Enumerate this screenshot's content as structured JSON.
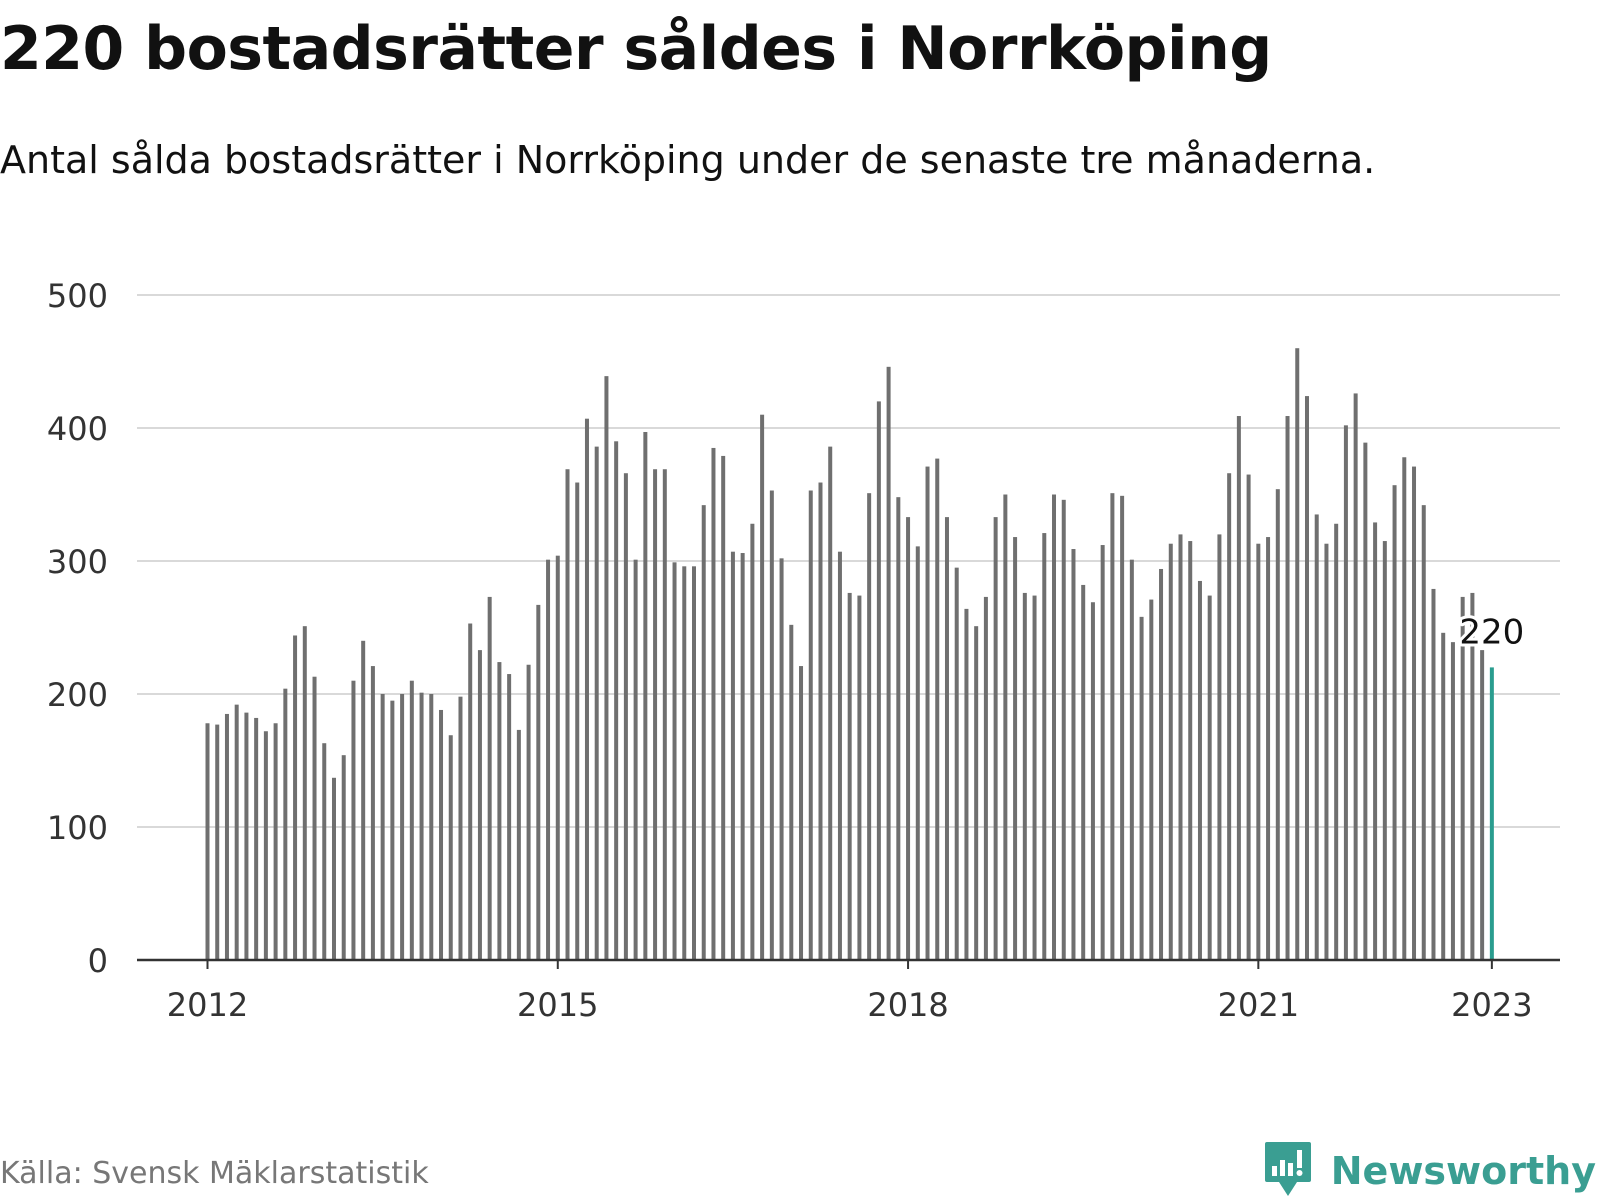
{
  "title": "220 bostadsrätter såldes i Norrköping",
  "subtitle": "Antal sålda bostadsrätter i Norrköping under de senaste tre månaderna.",
  "source": "Källa: Svensk Mäklarstatistik",
  "brand": {
    "name": "Newsworthy",
    "icon": "newsworthy-logo-icon",
    "color": "#3a9e92"
  },
  "colors": {
    "bar": "#6f6f6f",
    "highlight": "#2a9d8f",
    "grid": "#d9d9d9",
    "axis": "#333333",
    "text": "#111111"
  },
  "chart_data": {
    "type": "bar",
    "title": "220 bostadsrätter såldes i Norrköping",
    "subtitle": "Antal sålda bostadsrätter i Norrköping under de senaste tre månaderna.",
    "ylim": [
      0,
      500
    ],
    "yticks": [
      0,
      100,
      200,
      300,
      400,
      500
    ],
    "xticks": [
      {
        "label": "2012",
        "index": 0
      },
      {
        "label": "2015",
        "index": 36
      },
      {
        "label": "2018",
        "index": 72
      },
      {
        "label": "2021",
        "index": 108
      },
      {
        "label": "2023",
        "index": 132
      }
    ],
    "grid": true,
    "x_start": "2012-01",
    "x_end": "2023-01",
    "highlight_label": "220",
    "values": [
      178,
      177,
      185,
      192,
      186,
      182,
      172,
      178,
      204,
      244,
      251,
      213,
      163,
      137,
      154,
      210,
      240,
      221,
      200,
      195,
      200,
      210,
      201,
      200,
      188,
      169,
      198,
      253,
      233,
      273,
      224,
      215,
      173,
      222,
      267,
      301,
      304,
      369,
      359,
      407,
      386,
      439,
      390,
      366,
      301,
      397,
      369,
      369,
      299,
      296,
      296,
      342,
      385,
      379,
      307,
      306,
      328,
      410,
      353,
      302,
      252,
      221,
      353,
      359,
      386,
      307,
      276,
      274,
      351,
      420,
      446,
      348,
      333,
      311,
      371,
      377,
      333,
      295,
      264,
      251,
      273,
      333,
      350,
      318,
      276,
      274,
      321,
      350,
      346,
      309,
      282,
      269,
      312,
      351,
      349,
      301,
      258,
      271,
      294,
      313,
      320,
      315,
      285,
      274,
      320,
      366,
      409,
      365,
      313,
      318,
      354,
      409,
      460,
      424,
      335,
      313,
      328,
      402,
      426,
      389,
      329,
      315,
      357,
      378,
      371,
      342,
      279,
      246,
      239,
      273,
      276,
      233,
      220
    ]
  }
}
